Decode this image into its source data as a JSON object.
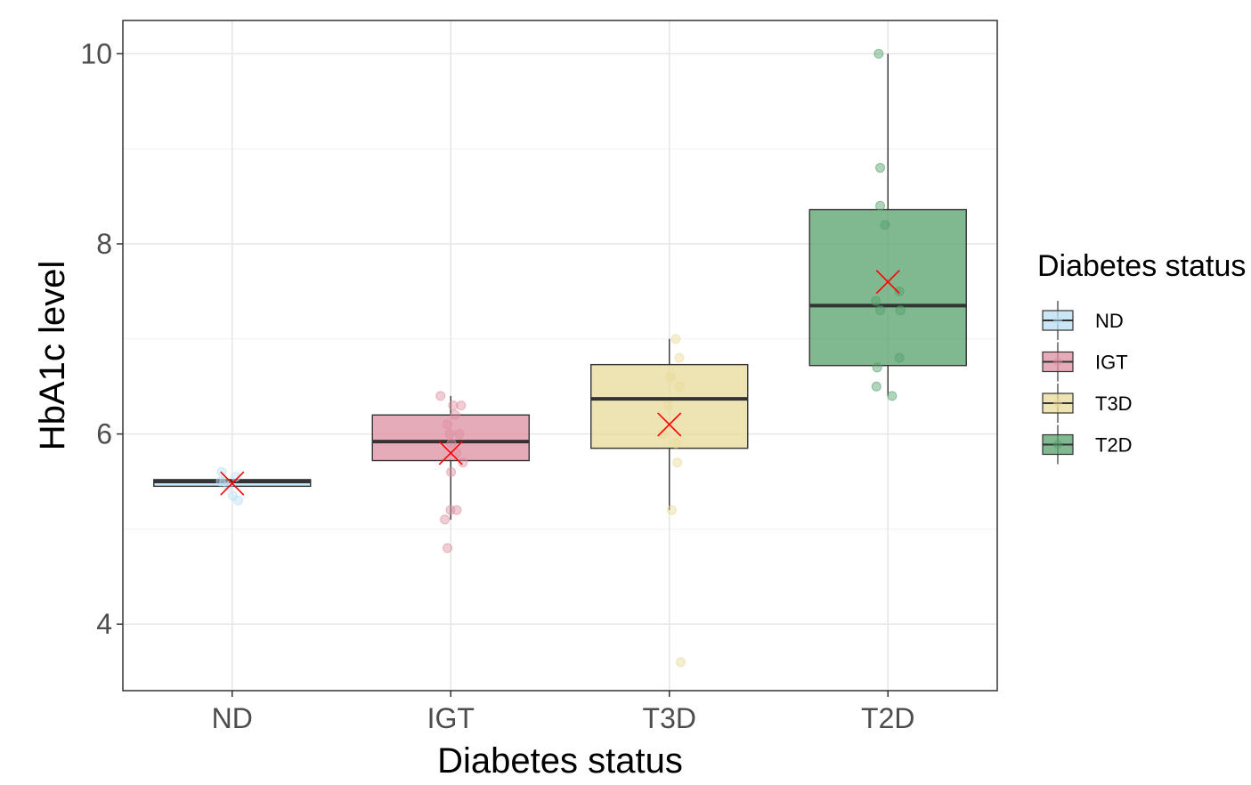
{
  "chart_data": {
    "type": "box",
    "title": "",
    "xlabel": "Diabetes status",
    "ylabel": "HbA1c level",
    "ylim": [
      3.3,
      10.35
    ],
    "yticks": [
      4,
      6,
      8,
      10
    ],
    "ytick_labels": [
      "4",
      "6",
      "8",
      "10"
    ],
    "grid": true,
    "legend": {
      "title": "Diabetes status",
      "position": "right",
      "entries": [
        "ND",
        "IGT",
        "T3D",
        "T2D"
      ]
    },
    "mean_marker_color": "#ff0000",
    "categories": [
      "ND",
      "IGT",
      "T3D",
      "T2D"
    ],
    "series": [
      {
        "category": "ND",
        "color": "#b9dff3",
        "q1": 5.45,
        "median": 5.5,
        "q3": 5.52,
        "whisker_low": 5.45,
        "whisker_high": 5.52,
        "mean": 5.48,
        "points": [
          5.3,
          5.35,
          5.45,
          5.5,
          5.5,
          5.55,
          5.6
        ]
      },
      {
        "category": "IGT",
        "color": "#dd8fa0",
        "q1": 5.72,
        "median": 5.92,
        "q3": 6.2,
        "whisker_low": 5.1,
        "whisker_high": 6.4,
        "mean": 5.8,
        "points": [
          4.8,
          5.1,
          5.2,
          5.2,
          5.6,
          5.7,
          5.8,
          5.9,
          6.0,
          6.0,
          6.1,
          6.2,
          6.3,
          6.3,
          6.4
        ]
      },
      {
        "category": "T3D",
        "color": "#e8da9a",
        "q1": 5.85,
        "median": 6.37,
        "q3": 6.73,
        "whisker_low": 5.2,
        "whisker_high": 7.0,
        "mean": 6.1,
        "points": [
          3.6,
          5.2,
          5.7,
          5.9,
          6.0,
          6.3,
          6.5,
          6.6,
          6.8,
          7.0
        ]
      },
      {
        "category": "T2D",
        "color": "#55a06b",
        "q1": 6.72,
        "median": 7.35,
        "q3": 8.36,
        "whisker_low": 6.4,
        "whisker_high": 10.0,
        "mean": 7.6,
        "points": [
          6.4,
          6.5,
          6.7,
          6.8,
          7.3,
          7.3,
          7.4,
          7.5,
          8.2,
          8.4,
          8.8,
          10.0
        ]
      }
    ]
  }
}
